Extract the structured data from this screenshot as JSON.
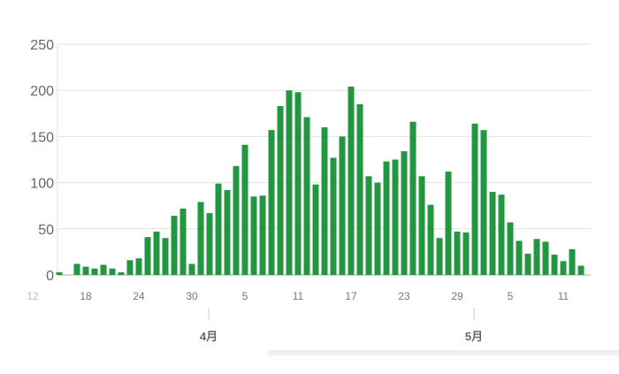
{
  "chart_data": {
    "type": "bar",
    "title": "",
    "xlabel": "",
    "ylabel": "",
    "ylim": [
      0,
      250
    ],
    "yticks": [
      "0",
      "50",
      "100",
      "150",
      "200",
      "250"
    ],
    "grid": true,
    "bar_color": "#22973f",
    "categories": [
      "3/15",
      "3/16",
      "3/17",
      "3/18",
      "3/19",
      "3/20",
      "3/21",
      "3/22",
      "3/23",
      "3/24",
      "3/25",
      "3/26",
      "3/27",
      "3/28",
      "3/29",
      "3/30",
      "3/31",
      "4/1",
      "4/2",
      "4/3",
      "4/4",
      "4/5",
      "4/6",
      "4/7",
      "4/8",
      "4/9",
      "4/10",
      "4/11",
      "4/12",
      "4/13",
      "4/14",
      "4/15",
      "4/16",
      "4/17",
      "4/18",
      "4/19",
      "4/20",
      "4/21",
      "4/22",
      "4/23",
      "4/24",
      "4/25",
      "4/26",
      "4/27",
      "4/28",
      "4/29",
      "4/30",
      "5/1",
      "5/2",
      "5/3",
      "5/4",
      "5/5",
      "5/6",
      "5/7",
      "5/8",
      "5/9",
      "5/10",
      "5/11",
      "5/12",
      "5/13"
    ],
    "values": [
      3,
      0,
      12,
      9,
      7,
      11,
      7,
      3,
      16,
      18,
      41,
      47,
      40,
      64,
      72,
      12,
      79,
      67,
      99,
      92,
      118,
      141,
      85,
      86,
      157,
      183,
      200,
      198,
      171,
      98,
      160,
      127,
      150,
      204,
      185,
      107,
      100,
      123,
      125,
      134,
      166,
      107,
      76,
      40,
      112,
      47,
      46,
      164,
      157,
      90,
      87,
      57,
      37,
      23,
      39,
      36,
      22,
      15,
      28,
      10
    ],
    "xtick_labels": [
      {
        "label": "12",
        "date": "3/12",
        "faded": true
      },
      {
        "label": "18",
        "date": "3/18"
      },
      {
        "label": "24",
        "date": "3/24"
      },
      {
        "label": "30",
        "date": "3/30"
      },
      {
        "label": "5",
        "date": "4/5"
      },
      {
        "label": "11",
        "date": "4/11"
      },
      {
        "label": "17",
        "date": "4/17"
      },
      {
        "label": "23",
        "date": "4/23"
      },
      {
        "label": "29",
        "date": "4/29"
      },
      {
        "label": "5",
        "date": "5/5"
      },
      {
        "label": "11",
        "date": "5/11"
      }
    ],
    "month_labels": [
      {
        "label": "4月",
        "date": "4/1"
      },
      {
        "label": "5月",
        "date": "5/1"
      }
    ]
  }
}
